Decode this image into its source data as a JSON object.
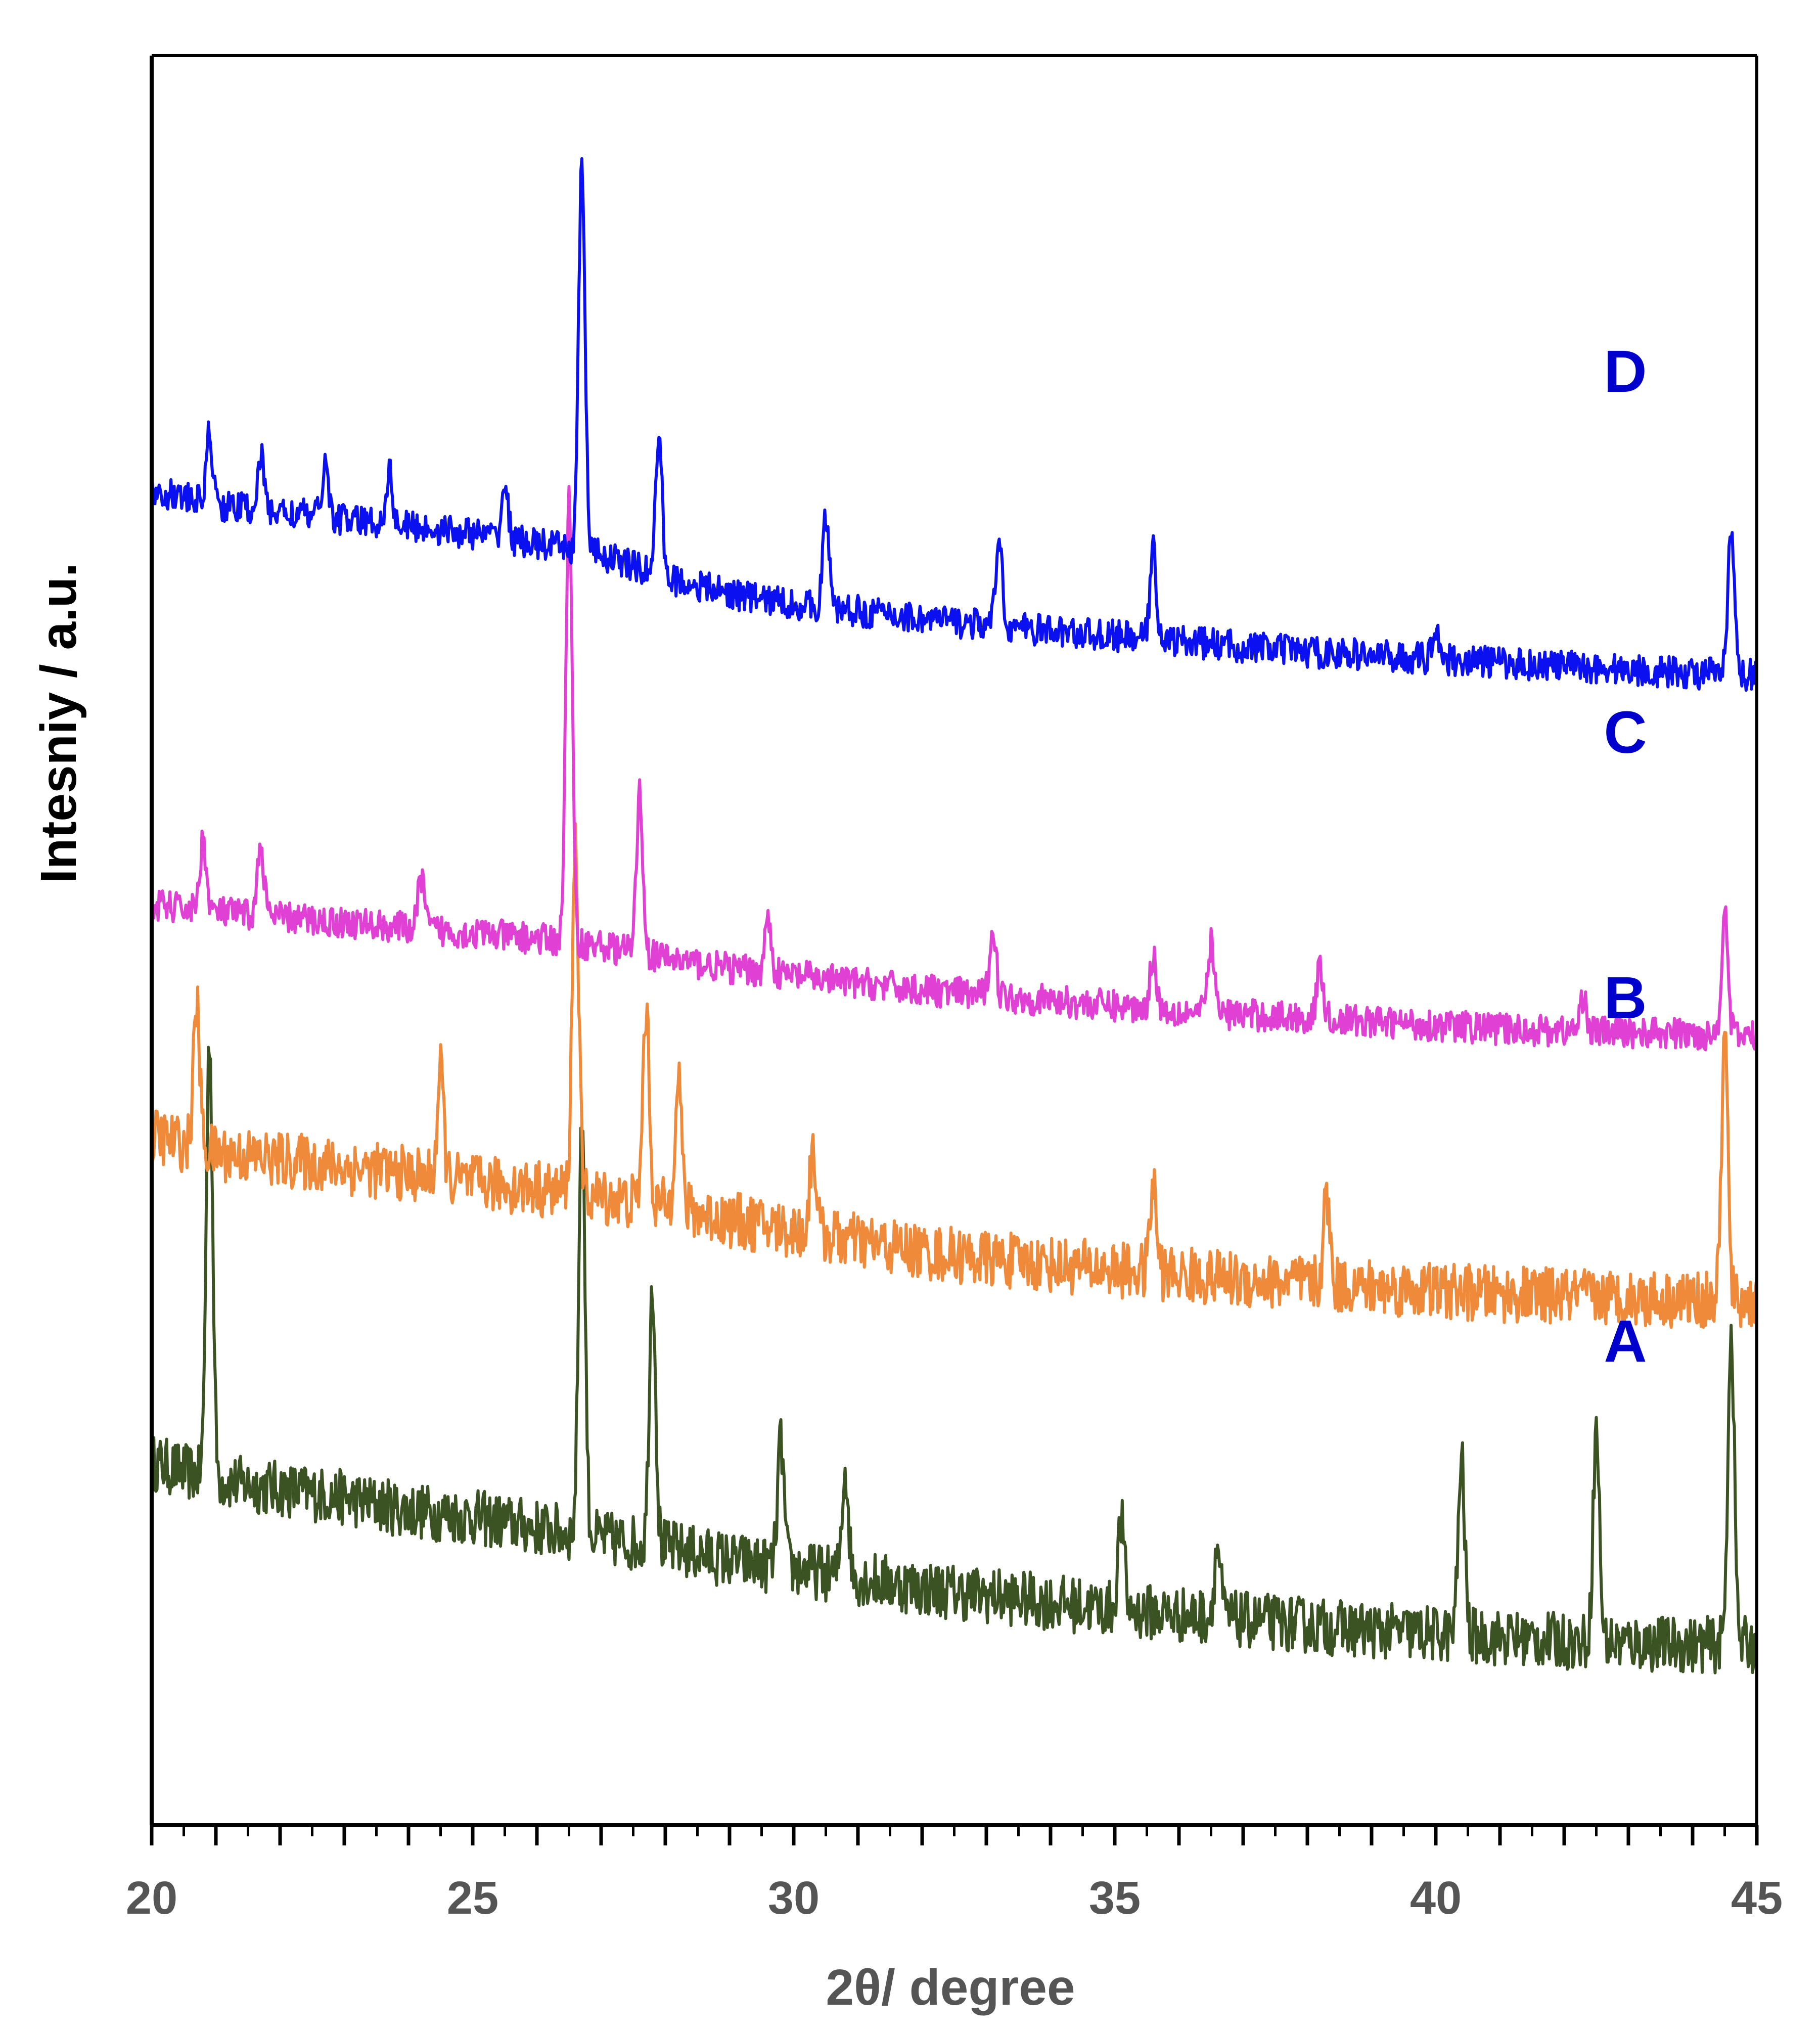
{
  "chart_data": {
    "type": "line",
    "title": "",
    "xlabel": "2θ/ degree",
    "ylabel": "Intesniy / a.u.",
    "xlim": [
      20,
      45
    ],
    "ylim": [
      0,
      100
    ],
    "x_ticks": [
      20,
      25,
      30,
      35,
      40,
      45
    ],
    "x_tick_labels": [
      "20",
      "25",
      "30",
      "35",
      "40",
      "45"
    ],
    "grid": false,
    "legend": "inline labels at right",
    "colors": {
      "A": "#3b5323",
      "B": "#ef8a3a",
      "C": "#e040d4",
      "D": "#0a10f0",
      "labels": "#0000cc",
      "axis": "#000000",
      "ticks": "#555555"
    },
    "series": [
      {
        "name": "A",
        "label_position": "right",
        "peaks": [
          [
            20.9,
            25
          ],
          [
            26.7,
            24
          ],
          [
            27.8,
            15
          ],
          [
            29.8,
            7
          ],
          [
            30.8,
            6
          ],
          [
            35.1,
            5
          ],
          [
            36.6,
            4
          ],
          [
            40.4,
            10
          ],
          [
            42.5,
            12
          ],
          [
            44.6,
            18
          ]
        ],
        "points": [
          [
            20,
            20.5
          ],
          [
            20.5,
            20
          ],
          [
            21,
            19.5
          ],
          [
            22,
            19
          ],
          [
            23,
            18.5
          ],
          [
            24,
            17.8
          ],
          [
            25,
            17.4
          ],
          [
            26,
            16.8
          ],
          [
            27,
            16.2
          ],
          [
            28,
            15.7
          ],
          [
            29,
            15
          ],
          [
            30,
            14.5
          ],
          [
            31,
            14
          ],
          [
            32,
            13.4
          ],
          [
            33,
            13
          ],
          [
            34,
            12.6
          ],
          [
            35,
            12.2
          ],
          [
            36,
            11.9
          ],
          [
            37,
            11.6
          ],
          [
            38,
            11.3
          ],
          [
            39,
            11
          ],
          [
            40,
            10.8
          ],
          [
            41,
            10.6
          ],
          [
            42,
            10.4
          ],
          [
            43,
            10.3
          ],
          [
            44,
            10.2
          ],
          [
            45,
            10.2
          ]
        ]
      },
      {
        "name": "B",
        "label_position": "right",
        "peaks": [
          [
            20.7,
            8
          ],
          [
            24.5,
            6
          ],
          [
            26.6,
            20
          ],
          [
            27.7,
            11
          ],
          [
            28.2,
            8
          ],
          [
            30.3,
            5
          ],
          [
            35.6,
            5
          ],
          [
            38.3,
            5
          ],
          [
            44.5,
            15
          ]
        ],
        "points": [
          [
            20,
            39
          ],
          [
            20.5,
            38.5
          ],
          [
            21,
            38
          ],
          [
            22,
            37.6
          ],
          [
            23,
            37.2
          ],
          [
            24,
            36.8
          ],
          [
            25,
            36.3
          ],
          [
            26,
            36
          ],
          [
            27,
            35.5
          ],
          [
            28,
            35
          ],
          [
            29,
            34.2
          ],
          [
            30,
            33.6
          ],
          [
            31,
            33
          ],
          [
            32,
            32.4
          ],
          [
            33,
            32
          ],
          [
            34,
            31.7
          ],
          [
            35,
            31.4
          ],
          [
            36,
            31.1
          ],
          [
            37,
            30.8
          ],
          [
            38,
            30.6
          ],
          [
            39,
            30.4
          ],
          [
            40,
            30.2
          ],
          [
            41,
            30
          ],
          [
            42,
            29.9
          ],
          [
            43,
            29.8
          ],
          [
            44,
            29.7
          ],
          [
            45,
            29.6
          ]
        ]
      },
      {
        "name": "C",
        "label_position": "right",
        "peaks": [
          [
            20.8,
            4
          ],
          [
            21.7,
            4
          ],
          [
            24.2,
            3
          ],
          [
            26.5,
            25
          ],
          [
            27.6,
            9
          ],
          [
            29.6,
            3
          ],
          [
            33.1,
            4
          ],
          [
            35.6,
            3
          ],
          [
            36.5,
            4
          ],
          [
            38.2,
            3
          ],
          [
            42.3,
            2
          ],
          [
            44.5,
            7
          ]
        ],
        "points": [
          [
            20,
            52
          ],
          [
            20.5,
            51.8
          ],
          [
            21,
            51.6
          ],
          [
            22,
            51.3
          ],
          [
            23,
            51
          ],
          [
            24,
            50.7
          ],
          [
            25,
            50.4
          ],
          [
            26,
            50.1
          ],
          [
            27,
            49.7
          ],
          [
            28,
            49
          ],
          [
            29,
            48.4
          ],
          [
            30,
            48
          ],
          [
            31,
            47.6
          ],
          [
            32,
            47.2
          ],
          [
            33,
            46.9
          ],
          [
            34,
            46.6
          ],
          [
            35,
            46.3
          ],
          [
            36,
            46
          ],
          [
            37,
            45.8
          ],
          [
            38,
            45.6
          ],
          [
            39,
            45.4
          ],
          [
            40,
            45.2
          ],
          [
            41,
            45
          ],
          [
            42,
            44.9
          ],
          [
            43,
            44.8
          ],
          [
            44,
            44.7
          ],
          [
            45,
            44.6
          ]
        ]
      },
      {
        "name": "D",
        "label_position": "right",
        "peaks": [
          [
            20.9,
            4
          ],
          [
            21.7,
            3
          ],
          [
            22.7,
            3
          ],
          [
            23.7,
            3
          ],
          [
            25.5,
            3
          ],
          [
            26.7,
            22
          ],
          [
            27.9,
            8
          ],
          [
            30.5,
            5
          ],
          [
            33.2,
            5
          ],
          [
            35.6,
            5
          ],
          [
            40.0,
            2
          ],
          [
            44.6,
            8
          ]
        ],
        "points": [
          [
            20,
            75.5
          ],
          [
            20.5,
            75
          ],
          [
            21,
            74.6
          ],
          [
            22,
            74.2
          ],
          [
            23,
            73.8
          ],
          [
            24,
            73.4
          ],
          [
            25,
            73
          ],
          [
            26,
            72.4
          ],
          [
            27,
            71.8
          ],
          [
            28,
            70.5
          ],
          [
            29,
            69.6
          ],
          [
            30,
            69
          ],
          [
            31,
            68.6
          ],
          [
            32,
            68.2
          ],
          [
            33,
            67.8
          ],
          [
            34,
            67.5
          ],
          [
            35,
            67.2
          ],
          [
            36,
            66.9
          ],
          [
            37,
            66.6
          ],
          [
            38,
            66.3
          ],
          [
            39,
            66.1
          ],
          [
            40,
            65.9
          ],
          [
            41,
            65.7
          ],
          [
            42,
            65.5
          ],
          [
            43,
            65.3
          ],
          [
            44,
            65.1
          ],
          [
            45,
            65
          ]
        ]
      }
    ]
  }
}
